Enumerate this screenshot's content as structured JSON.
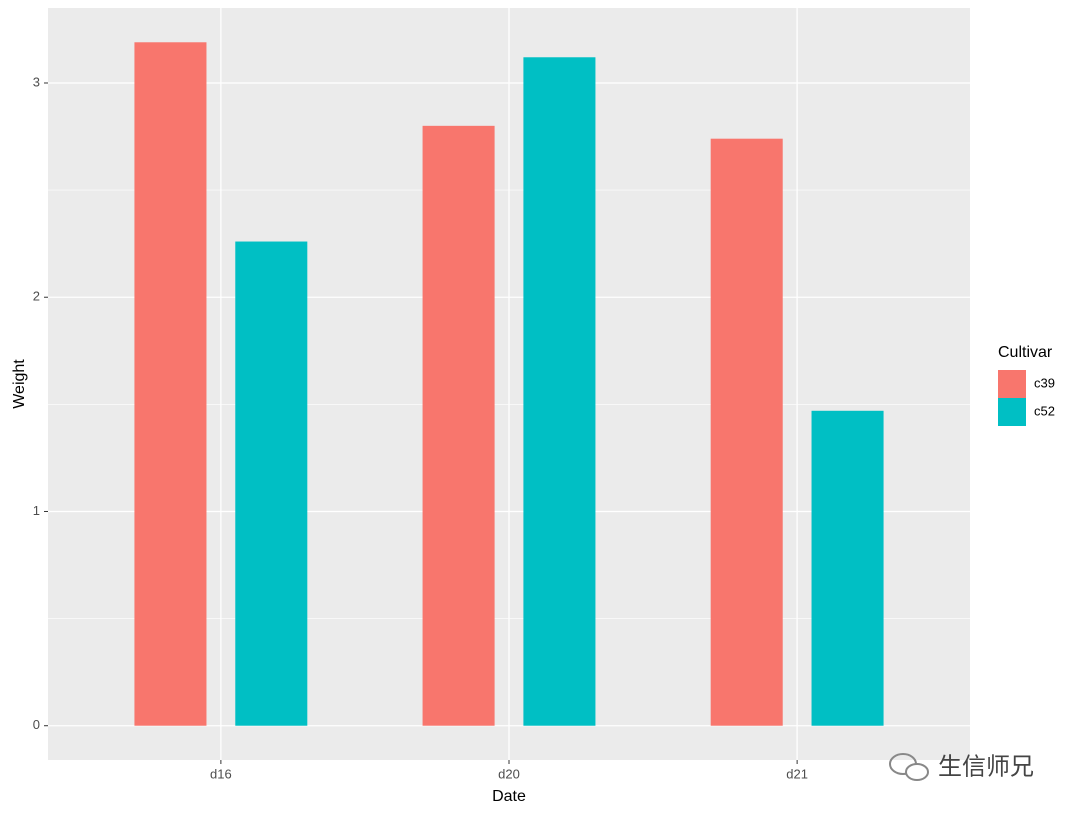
{
  "chart_data": {
    "type": "bar",
    "x_label": "Date",
    "y_label": "Weight",
    "legend_title": "Cultivar",
    "categories": [
      "d16",
      "d20",
      "d21"
    ],
    "series": [
      {
        "name": "c39",
        "color": "#f8766d",
        "values": [
          3.19,
          2.8,
          2.74
        ]
      },
      {
        "name": "c52",
        "color": "#00bfc4",
        "values": [
          2.26,
          3.12,
          1.47
        ]
      }
    ],
    "ylim": [
      -0.16,
      3.35
    ],
    "yticks": [
      0,
      1,
      2,
      3
    ],
    "grid": true,
    "legend": "right",
    "watermark": "生信师兄"
  }
}
